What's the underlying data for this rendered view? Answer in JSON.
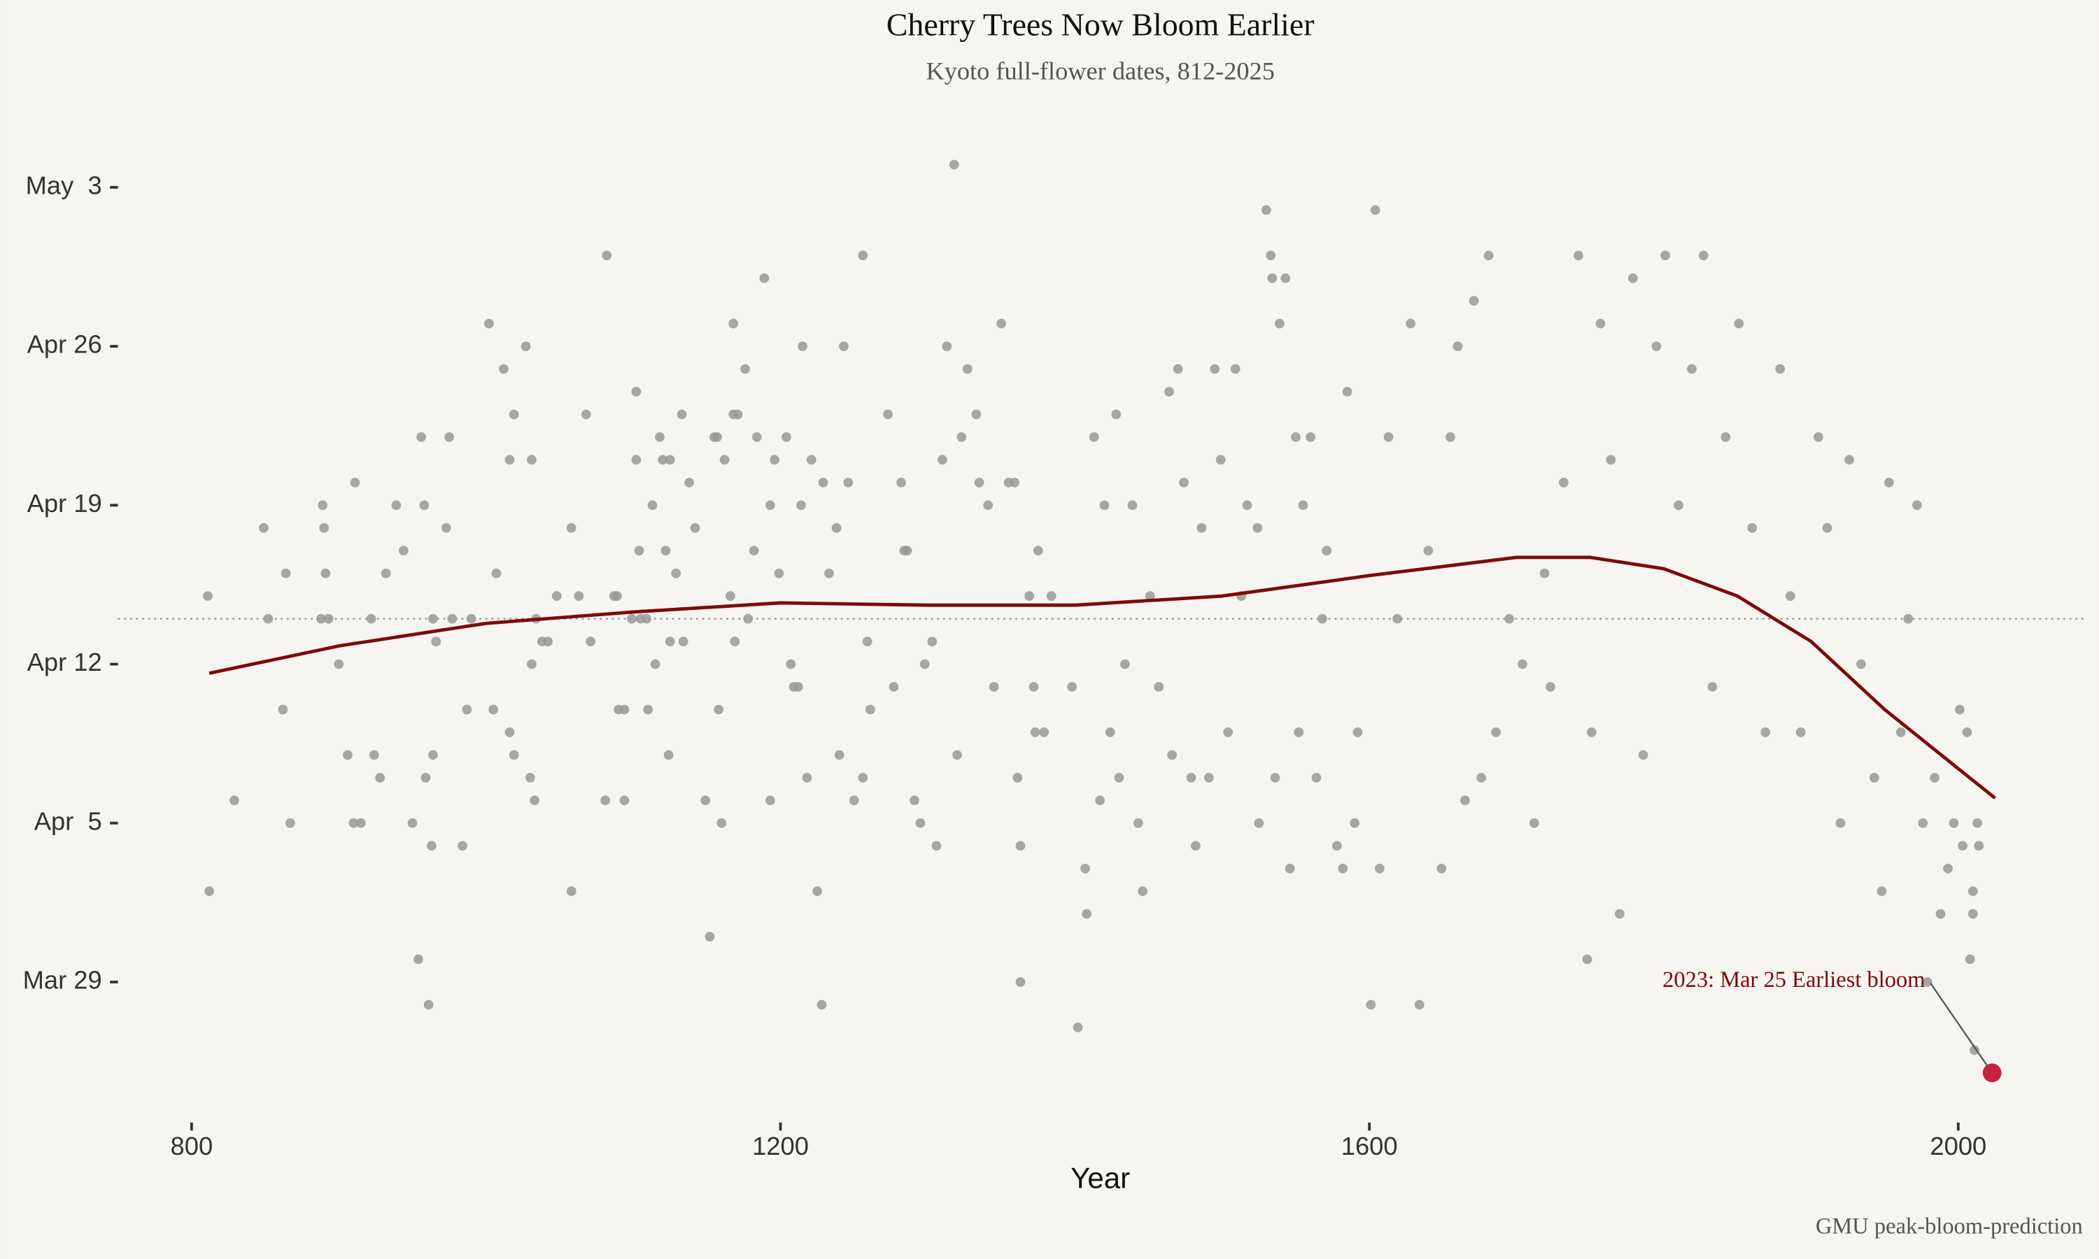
{
  "chart_data": {
    "type": "scatter",
    "title": "Cherry Trees Now Bloom Earlier",
    "subtitle": "Kyoto full-flower dates, 812-2025",
    "x_label": "Year",
    "caption": "GMU peak-bloom-prediction",
    "xlim": [
      750,
      2085
    ],
    "ylim": [
      81.8,
      125.4
    ],
    "xticks": [
      800,
      1200,
      1600,
      2000
    ],
    "yticks": [
      {
        "value": 88,
        "label": "Mar 29"
      },
      {
        "value": 95,
        "label": "Apr  5"
      },
      {
        "value": 102,
        "label": "Apr 12"
      },
      {
        "value": 109,
        "label": "Apr 19"
      },
      {
        "value": 116,
        "label": "Apr 26"
      },
      {
        "value": 123,
        "label": "May  3"
      }
    ],
    "point_color": "#9a9895",
    "x": [
      812,
      811,
      829,
      849,
      852,
      862,
      864,
      867,
      889,
      890,
      891,
      888,
      893,
      900,
      906,
      911,
      910,
      915,
      922,
      924,
      928,
      932,
      939,
      944,
      950,
      954,
      956,
      958,
      959,
      961,
      963,
      964,
      966,
      964,
      973,
      975,
      977,
      984,
      987,
      990,
      1002,
      1005,
      1007,
      1012,
      1016,
      1016,
      1019,
      1019,
      1027,
      1030,
      1031,
      1033,
      1031,
      1034,
      1038,
      1042,
      1048,
      1058,
      1058,
      1063,
      1068,
      1071,
      1081,
      1082,
      1087,
      1089,
      1090,
      1094,
      1094,
      1099,
      1102,
      1102,
      1104,
      1105,
      1109,
      1110,
      1113,
      1115,
      1118,
      1120,
      1122,
      1125,
      1124,
      1125,
      1129,
      1133,
      1134,
      1138,
      1142,
      1149,
      1152,
      1155,
      1157,
      1158,
      1160,
      1162,
      1166,
      1168,
      1168,
      1171,
      1169,
      1176,
      1178,
      1182,
      1184,
      1189,
      1193,
      1193,
      1196,
      1199,
      1204,
      1207,
      1209,
      1212,
      1214,
      1215,
      1218,
      1221,
      1225,
      1228,
      1229,
      1233,
      1238,
      1240,
      1243,
      1246,
      1250,
      1256,
      1256,
      1259,
      1261,
      1273,
      1277,
      1282,
      1284,
      1286,
      1291,
      1295,
      1298,
      1303,
      1306,
      1310,
      1313,
      1318,
      1320,
      1323,
      1327,
      1333,
      1335,
      1341,
      1345,
      1350,
      1355,
      1359,
      1361,
      1363,
      1363,
      1369,
      1372,
      1373,
      1375,
      1379,
      1384,
      1398,
      1402,
      1407,
      1408,
      1413,
      1417,
      1420,
      1424,
      1428,
      1430,
      1434,
      1439,
      1443,
      1446,
      1451,
      1457,
      1464,
      1466,
      1470,
      1474,
      1479,
      1482,
      1486,
      1491,
      1495,
      1499,
      1504,
      1509,
      1513,
      1517,
      1524,
      1525,
      1530,
      1533,
      1534,
      1536,
      1539,
      1543,
      1546,
      1550,
      1552,
      1555,
      1560,
      1564,
      1568,
      1571,
      1578,
      1582,
      1585,
      1590,
      1592,
      1601,
      1604,
      1607,
      1613,
      1619,
      1628,
      1634,
      1640,
      1649,
      1655,
      1660,
      1665,
      1671,
      1676,
      1681,
      1686,
      1695,
      1704,
      1712,
      1719,
      1723,
      1732,
      1742,
      1748,
      1751,
      1757,
      1764,
      1770,
      1779,
      1786,
      1795,
      1801,
      1810,
      1819,
      1827,
      1833,
      1842,
      1851,
      1860,
      1869,
      1879,
      1886,
      1893,
      1905,
      1911,
      1920,
      1926,
      1934,
      1943,
      1948,
      1953,
      1961,
      1966,
      1972,
      1976,
      1979,
      1984,
      1988,
      1993,
      1997,
      2001,
      2003,
      2006,
      2008,
      2010,
      2010,
      2011,
      2013,
      2014
    ],
    "values": [
      92,
      105,
      96,
      108,
      104,
      100,
      106,
      95,
      109,
      108,
      106,
      104,
      104,
      102,
      98,
      110,
      95,
      95,
      104,
      98,
      97,
      106,
      109,
      107,
      95,
      89,
      112,
      109,
      97,
      87,
      94,
      104,
      103,
      98,
      108,
      112,
      104,
      94,
      100,
      104,
      117,
      100,
      106,
      115,
      111,
      99,
      98,
      113,
      116,
      97,
      111,
      96,
      102,
      104,
      103,
      103,
      105,
      92,
      108,
      105,
      113,
      103,
      96,
      120,
      105,
      105,
      100,
      100,
      96,
      104,
      114,
      111,
      107,
      104,
      104,
      100,
      109,
      102,
      112,
      111,
      107,
      111,
      98,
      103,
      106,
      113,
      103,
      110,
      108,
      96,
      90,
      112,
      112,
      100,
      95,
      111,
      105,
      117,
      113,
      113,
      103,
      115,
      104,
      107,
      112,
      119,
      96,
      109,
      111,
      106,
      112,
      102,
      101,
      101,
      109,
      116,
      97,
      111,
      92,
      87,
      110,
      106,
      108,
      98,
      116,
      110,
      96,
      120,
      97,
      103,
      100,
      113,
      101,
      110,
      107,
      107,
      96,
      95,
      102,
      103,
      94,
      111,
      116,
      124,
      98,
      112,
      115,
      113,
      110,
      109,
      101,
      117,
      110,
      110,
      97,
      88,
      94,
      105,
      101,
      99,
      107,
      99,
      105,
      101,
      86,
      93,
      91,
      112,
      96,
      109,
      99,
      113,
      97,
      102,
      109,
      95,
      92,
      105,
      101,
      114,
      98,
      115,
      110,
      97,
      94,
      108,
      97,
      115,
      111,
      99,
      115,
      105,
      109,
      108,
      95,
      122,
      120,
      119,
      97,
      117,
      119,
      93,
      112,
      99,
      109,
      112,
      97,
      104,
      107,
      94,
      93,
      114,
      95,
      99,
      87,
      122,
      93,
      112,
      104,
      117,
      87,
      107,
      93,
      112,
      116,
      96,
      118,
      97,
      120,
      99,
      104,
      102,
      95,
      106,
      101,
      110,
      120,
      89,
      99,
      117,
      111,
      91,
      119,
      98,
      116,
      120,
      109,
      115,
      120,
      101,
      112,
      117,
      108,
      99,
      115,
      105,
      99,
      112,
      108,
      95,
      111,
      102,
      97,
      92,
      110,
      99,
      104,
      109,
      95,
      88,
      97,
      91,
      93,
      95,
      100,
      94,
      99,
      89,
      92,
      91,
      85,
      95,
      94
    ],
    "trend": {
      "color": "#7d0a0a",
      "x": [
        812,
        900,
        1000,
        1100,
        1200,
        1300,
        1400,
        1500,
        1600,
        1700,
        1750,
        1800,
        1850,
        1900,
        1950,
        2000,
        2025
      ],
      "values": [
        101.6,
        102.8,
        103.8,
        104.3,
        104.7,
        104.6,
        104.6,
        105.0,
        105.9,
        106.7,
        106.7,
        106.2,
        105.0,
        103.0,
        100.0,
        97.4,
        96.1
      ]
    },
    "reference_line": 104,
    "highlight": {
      "x": 2023,
      "value": 84,
      "label": "2023: Mar 25 Earliest bloom",
      "color": "#c8203f",
      "label_color": "#7d0a0a"
    }
  }
}
